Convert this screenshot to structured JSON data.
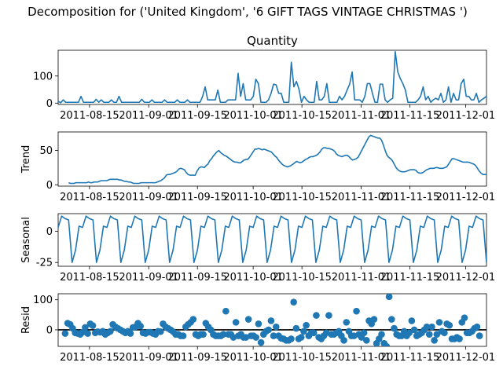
{
  "figure": {
    "suptitle": "Decomposition for ('United Kingdom', '6 GIFT TAGS VINTAGE CHRISTMAS ')"
  },
  "colors": {
    "series": "#1f77b4",
    "zero_line": "#000000"
  },
  "chart_data": [
    {
      "type": "line",
      "title": "Quantity",
      "ylabel": "",
      "xlim": [
        "2011-08-06",
        "2011-12-07"
      ],
      "ylim": [
        -5,
        195
      ],
      "yticks": [
        0,
        100
      ],
      "xtick_labels": [
        "2011-08-15",
        "2011-09-01",
        "2011-09-15",
        "2011-10-01",
        "2011-10-15",
        "2011-11-01",
        "2011-11-15",
        "2011-12-01"
      ],
      "start": "2011-08-06",
      "values": [
        7,
        1,
        12,
        3,
        3,
        3,
        3,
        3,
        3,
        25,
        3,
        3,
        3,
        3,
        3,
        14,
        3,
        12,
        3,
        3,
        3,
        12,
        3,
        3,
        25,
        3,
        3,
        3,
        3,
        3,
        3,
        3,
        3,
        14,
        3,
        3,
        3,
        12,
        3,
        3,
        3,
        3,
        12,
        3,
        3,
        3,
        3,
        12,
        3,
        3,
        3,
        12,
        3,
        3,
        3,
        3,
        3,
        25,
        60,
        12,
        12,
        12,
        12,
        48,
        3,
        3,
        3,
        12,
        12,
        12,
        12,
        110,
        25,
        72,
        12,
        12,
        12,
        25,
        88,
        72,
        3,
        3,
        3,
        12,
        36,
        70,
        67,
        36,
        36,
        3,
        3,
        3,
        151,
        60,
        80,
        52,
        3,
        25,
        12,
        3,
        3,
        3,
        80,
        12,
        12,
        25,
        72,
        3,
        3,
        3,
        3,
        25,
        12,
        25,
        48,
        70,
        115,
        12,
        12,
        12,
        3,
        25,
        72,
        72,
        36,
        3,
        3,
        70,
        70,
        12,
        3,
        12,
        18,
        190,
        115,
        90,
        72,
        48,
        3,
        3,
        3,
        3,
        12,
        25,
        60,
        12,
        25,
        3,
        12,
        18,
        12,
        36,
        3,
        12,
        60,
        3,
        36,
        12,
        12,
        72,
        88,
        25,
        25,
        12,
        12,
        36,
        3,
        12,
        18,
        25
      ]
    },
    {
      "type": "line",
      "title": "",
      "ylabel": "Trend",
      "xlim": [
        "2011-08-06",
        "2011-12-07"
      ],
      "ylim": [
        -2,
        77
      ],
      "yticks": [
        0,
        50
      ],
      "xtick_labels": [
        "2011-08-15",
        "2011-09-01",
        "2011-09-15",
        "2011-10-01",
        "2011-10-15",
        "2011-11-01",
        "2011-11-15",
        "2011-12-01"
      ],
      "start": "2011-08-09",
      "values": [
        3,
        2,
        2,
        2,
        3,
        3,
        3,
        3,
        3,
        3,
        3,
        4,
        3,
        3,
        4,
        4,
        4,
        5,
        6,
        6,
        6,
        6,
        7,
        8,
        8,
        8,
        8,
        8,
        7,
        7,
        6,
        5,
        5,
        4,
        4,
        3,
        2,
        2,
        2,
        2,
        3,
        3,
        3,
        3,
        3,
        3,
        3,
        3,
        3,
        4,
        5,
        6,
        8,
        10,
        14,
        15,
        15,
        16,
        17,
        18,
        20,
        23,
        24,
        23,
        22,
        18,
        15,
        14,
        14,
        14,
        14,
        20,
        24,
        26,
        26,
        25,
        28,
        30,
        35,
        38,
        42,
        45,
        48,
        50,
        47,
        45,
        43,
        42,
        40,
        38,
        36,
        34,
        33,
        33,
        32,
        32,
        34,
        36,
        37,
        37,
        40,
        44,
        48,
        52,
        52,
        53,
        52,
        51,
        52,
        51,
        50,
        49,
        48,
        45,
        42,
        40,
        36,
        33,
        30,
        28,
        27,
        26,
        27,
        28,
        30,
        32,
        34,
        33,
        32,
        33,
        35,
        37,
        38,
        40,
        41,
        41,
        42,
        43,
        45,
        48,
        52,
        54,
        54,
        53,
        53,
        52,
        51,
        49,
        45,
        43,
        42,
        41,
        42,
        43,
        43,
        41,
        38,
        36,
        37,
        38,
        40,
        45,
        50,
        55,
        60,
        65,
        70,
        72,
        71,
        70,
        69,
        68,
        68,
        65,
        58,
        50,
        43,
        40,
        38,
        35,
        30,
        25,
        22,
        20,
        19,
        19,
        19,
        20,
        21,
        22,
        22,
        22,
        21,
        18,
        17,
        17,
        18,
        20,
        22,
        23,
        24,
        24,
        24,
        25,
        25,
        24,
        24,
        24,
        25,
        26,
        30,
        34,
        38,
        38,
        37,
        36,
        35,
        34,
        33,
        33,
        33,
        33,
        32,
        31,
        30,
        28,
        24,
        20,
        17,
        15,
        15,
        15
      ]
    },
    {
      "type": "line",
      "title": "",
      "ylabel": "Seasonal",
      "xlim": [
        "2011-08-06",
        "2011-12-07"
      ],
      "ylim": [
        -28,
        14
      ],
      "yticks": [
        0,
        -25
      ],
      "xtick_labels": [
        "2011-08-15",
        "2011-09-01",
        "2011-09-15",
        "2011-10-01",
        "2011-10-15",
        "2011-11-01",
        "2011-11-15",
        "2011-12-01"
      ],
      "start": "2011-08-06",
      "period_values": [
        3,
        12,
        10,
        9,
        -25,
        -15,
        4
      ],
      "count": 124
    },
    {
      "type": "scatter",
      "title": "",
      "ylabel": "Resid",
      "xlim": [
        "2011-08-06",
        "2011-12-07"
      ],
      "ylim": [
        -55,
        120
      ],
      "yticks": [
        0,
        100
      ],
      "xtick_labels": [
        "2011-08-15",
        "2011-09-01",
        "2011-09-15",
        "2011-10-01",
        "2011-10-15",
        "2011-11-01",
        "2011-11-15",
        "2011-12-01"
      ],
      "hline": 0,
      "start": "2011-08-08",
      "values": [
        -12,
        22,
        18,
        5,
        -10,
        -12,
        -15,
        -8,
        8,
        -12,
        20,
        14,
        -10,
        -6,
        -8,
        -5,
        -15,
        -10,
        -5,
        18,
        10,
        5,
        0,
        -5,
        -10,
        -5,
        -12,
        8,
        10,
        22,
        12,
        -10,
        -12,
        -8,
        -8,
        -12,
        -15,
        -5,
        -6,
        20,
        10,
        5,
        0,
        -6,
        -15,
        -15,
        -20,
        -20,
        10,
        18,
        25,
        35,
        -15,
        -20,
        -15,
        -15,
        22,
        10,
        0,
        -15,
        -20,
        -20,
        -20,
        -15,
        62,
        -15,
        -15,
        -25,
        25,
        -20,
        -15,
        -25,
        -25,
        35,
        -20,
        -20,
        -25,
        20,
        -42,
        -15,
        -5,
        0,
        30,
        -20,
        10,
        -20,
        -28,
        -30,
        -35,
        -35,
        -30,
        92,
        5,
        -30,
        -25,
        -5,
        15,
        -20,
        -10,
        -10,
        48,
        -25,
        -30,
        -20,
        -10,
        48,
        -15,
        -15,
        -10,
        -5,
        -20,
        -35,
        25,
        -5,
        -20,
        -20,
        62,
        -15,
        -25,
        -10,
        -35,
        30,
        20,
        35,
        -45,
        -30,
        -15,
        -45,
        -55,
        110,
        35,
        5,
        -15,
        -20,
        -20,
        -5,
        -20,
        -10,
        30,
        0,
        -20,
        -15,
        -10,
        0,
        10,
        -15,
        10,
        -35,
        -15,
        25,
        -5,
        -10,
        20,
        15,
        -30,
        -30,
        -25,
        -30,
        25,
        40,
        -10,
        -10,
        -5,
        5,
        10,
        -20
      ]
    }
  ]
}
